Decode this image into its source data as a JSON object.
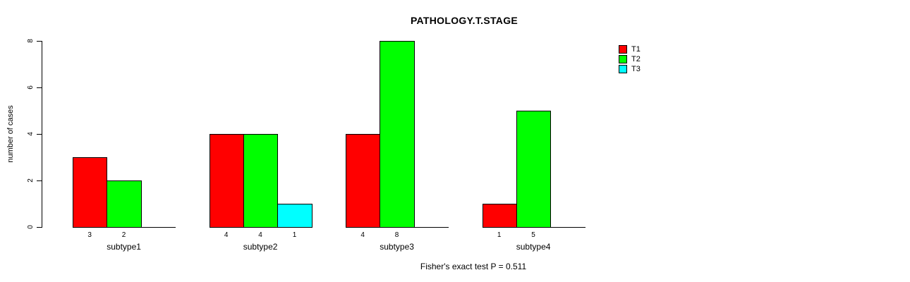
{
  "chart_data": {
    "type": "bar",
    "title": "PATHOLOGY.T.STAGE",
    "ylabel": "number of cases",
    "xlabel": "",
    "footnote": "Fisher's exact test P = 0.511",
    "categories": [
      "subtype1",
      "subtype2",
      "subtype3",
      "subtype4"
    ],
    "series": [
      {
        "name": "T1",
        "color": "#FF0000",
        "values": [
          3,
          4,
          4,
          1
        ]
      },
      {
        "name": "T2",
        "color": "#00FF00",
        "values": [
          2,
          4,
          8,
          5
        ]
      },
      {
        "name": "T3",
        "color": "#00FFFF",
        "values": [
          null,
          1,
          null,
          null
        ]
      }
    ],
    "bar_value_labels": true,
    "yticks": [
      0,
      2,
      4,
      6,
      8
    ],
    "ylim": [
      0,
      8
    ],
    "grid": false,
    "legend_position": "right",
    "background": "#FFFFFF",
    "axis_color": "#000000"
  }
}
